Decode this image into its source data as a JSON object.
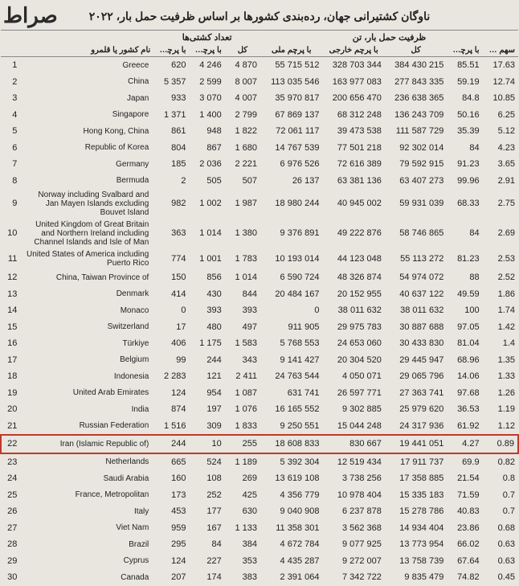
{
  "watermark": "صراط",
  "title": "ناوگان کشتیرانی جهان، رده‌بندی کشورها بر اساس ظرفیت حمل بار، ۲۰۲۲",
  "headers": {
    "group_ships": "تعداد کشتی‌ها",
    "group_capacity": "ظرفیت حمل بار، تن",
    "rank": "",
    "country": "نام کشور یا قلمرو",
    "nf": "با پرچم ملی",
    "ff": "با پرچم خارجی",
    "tot": "کل",
    "dnf": "با پرچم ملی",
    "dff": "با پرچم خارجی",
    "dtot": "کل",
    "pct": "با پرچم خارجی، درصد از کل",
    "wpct": "سهم کشور از کل جهان"
  },
  "highlight_rank": 22,
  "rows": [
    {
      "rank": 1,
      "country": "Greece",
      "nf": "620",
      "ff": "4 246",
      "tot": "4 870",
      "dnf": "55 715 512",
      "dff": "328 703 344",
      "dtot": "384 430 215",
      "pct": "85.51",
      "wpct": "17.63"
    },
    {
      "rank": 2,
      "country": "China",
      "nf": "5 357",
      "ff": "2 599",
      "tot": "8 007",
      "dnf": "113 035 546",
      "dff": "163 977 083",
      "dtot": "277 843 335",
      "pct": "59.19",
      "wpct": "12.74"
    },
    {
      "rank": 3,
      "country": "Japan",
      "nf": "933",
      "ff": "3 070",
      "tot": "4 007",
      "dnf": "35 970 817",
      "dff": "200 656 470",
      "dtot": "236 638 365",
      "pct": "84.8",
      "wpct": "10.85"
    },
    {
      "rank": 4,
      "country": "Singapore",
      "nf": "1 371",
      "ff": "1 400",
      "tot": "2 799",
      "dnf": "67 869 137",
      "dff": "68 312 248",
      "dtot": "136 243 709",
      "pct": "50.16",
      "wpct": "6.25"
    },
    {
      "rank": 5,
      "country": "Hong Kong, China",
      "nf": "861",
      "ff": "948",
      "tot": "1 822",
      "dnf": "72 061 117",
      "dff": "39 473 538",
      "dtot": "111 587 729",
      "pct": "35.39",
      "wpct": "5.12"
    },
    {
      "rank": 6,
      "country": "Republic of Korea",
      "nf": "804",
      "ff": "867",
      "tot": "1 680",
      "dnf": "14 767 539",
      "dff": "77 501 218",
      "dtot": "92 302 014",
      "pct": "84",
      "wpct": "4.23"
    },
    {
      "rank": 7,
      "country": "Germany",
      "nf": "185",
      "ff": "2 036",
      "tot": "2 221",
      "dnf": "6 976 526",
      "dff": "72 616 389",
      "dtot": "79 592 915",
      "pct": "91.23",
      "wpct": "3.65"
    },
    {
      "rank": 8,
      "country": "Bermuda",
      "nf": "2",
      "ff": "505",
      "tot": "507",
      "dnf": "26 137",
      "dff": "63 381 136",
      "dtot": "63 407 273",
      "pct": "99.96",
      "wpct": "2.91"
    },
    {
      "rank": 9,
      "country": "Norway including Svalbard and Jan Mayen Islands excluding Bouvet Island",
      "nf": "982",
      "ff": "1 002",
      "tot": "1 987",
      "dnf": "18 980 244",
      "dff": "40 945 002",
      "dtot": "59 931 039",
      "pct": "68.33",
      "wpct": "2.75",
      "multi": true
    },
    {
      "rank": 10,
      "country": "United Kingdom of Great Britain and Northern Ireland including Channel Islands and Isle of Man",
      "nf": "363",
      "ff": "1 014",
      "tot": "1 380",
      "dnf": "9 376 891",
      "dff": "49 222 876",
      "dtot": "58 746 865",
      "pct": "84",
      "wpct": "2.69",
      "multi": true
    },
    {
      "rank": 11,
      "country": "United States of America including Puerto Rico",
      "nf": "774",
      "ff": "1 001",
      "tot": "1 783",
      "dnf": "10 193 014",
      "dff": "44 123 048",
      "dtot": "55 113 272",
      "pct": "81.23",
      "wpct": "2.53",
      "multi": true
    },
    {
      "rank": 12,
      "country": "China, Taiwan Province of",
      "nf": "150",
      "ff": "856",
      "tot": "1 014",
      "dnf": "6 590 724",
      "dff": "48 326 874",
      "dtot": "54 974 072",
      "pct": "88",
      "wpct": "2.52"
    },
    {
      "rank": 13,
      "country": "Denmark",
      "nf": "414",
      "ff": "430",
      "tot": "844",
      "dnf": "20 484 167",
      "dff": "20 152 955",
      "dtot": "40 637 122",
      "pct": "49.59",
      "wpct": "1.86"
    },
    {
      "rank": 14,
      "country": "Monaco",
      "nf": "0",
      "ff": "393",
      "tot": "393",
      "dnf": "0",
      "dff": "38 011 632",
      "dtot": "38 011 632",
      "pct": "100",
      "wpct": "1.74"
    },
    {
      "rank": 15,
      "country": "Switzerland",
      "nf": "17",
      "ff": "480",
      "tot": "497",
      "dnf": "911 905",
      "dff": "29 975 783",
      "dtot": "30 887 688",
      "pct": "97.05",
      "wpct": "1.42"
    },
    {
      "rank": 16,
      "country": "Türkiye",
      "nf": "406",
      "ff": "1 175",
      "tot": "1 583",
      "dnf": "5 768 553",
      "dff": "24 653 060",
      "dtot": "30 433 830",
      "pct": "81.04",
      "wpct": "1.4"
    },
    {
      "rank": 17,
      "country": "Belgium",
      "nf": "99",
      "ff": "244",
      "tot": "343",
      "dnf": "9 141 427",
      "dff": "20 304 520",
      "dtot": "29 445 947",
      "pct": "68.96",
      "wpct": "1.35"
    },
    {
      "rank": 18,
      "country": "Indonesia",
      "nf": "2 283",
      "ff": "121",
      "tot": "2 411",
      "dnf": "24 763 544",
      "dff": "4 050 071",
      "dtot": "29 065 796",
      "pct": "14.06",
      "wpct": "1.33"
    },
    {
      "rank": 19,
      "country": "United Arab Emirates",
      "nf": "124",
      "ff": "954",
      "tot": "1 087",
      "dnf": "631 741",
      "dff": "26 597 771",
      "dtot": "27 363 741",
      "pct": "97.68",
      "wpct": "1.26"
    },
    {
      "rank": 20,
      "country": "India",
      "nf": "874",
      "ff": "197",
      "tot": "1 076",
      "dnf": "16 165 552",
      "dff": "9 302 885",
      "dtot": "25 979 620",
      "pct": "36.53",
      "wpct": "1.19"
    },
    {
      "rank": 21,
      "country": "Russian Federation",
      "nf": "1 516",
      "ff": "309",
      "tot": "1 833",
      "dnf": "9 250 551",
      "dff": "15 044 248",
      "dtot": "24 317 936",
      "pct": "61.92",
      "wpct": "1.12"
    },
    {
      "rank": 22,
      "country": "Iran (Islamic Republic of)",
      "nf": "244",
      "ff": "10",
      "tot": "255",
      "dnf": "18 608 833",
      "dff": "830 667",
      "dtot": "19 441 051",
      "pct": "4.27",
      "wpct": "0.89"
    },
    {
      "rank": 23,
      "country": "Netherlands",
      "nf": "665",
      "ff": "524",
      "tot": "1 189",
      "dnf": "5 392 304",
      "dff": "12 519 434",
      "dtot": "17 911 737",
      "pct": "69.9",
      "wpct": "0.82"
    },
    {
      "rank": 24,
      "country": "Saudi Arabia",
      "nf": "160",
      "ff": "108",
      "tot": "269",
      "dnf": "13 619 108",
      "dff": "3 738 256",
      "dtot": "17 358 885",
      "pct": "21.54",
      "wpct": "0.8"
    },
    {
      "rank": 25,
      "country": "France, Metropolitan",
      "nf": "173",
      "ff": "252",
      "tot": "425",
      "dnf": "4 356 779",
      "dff": "10 978 404",
      "dtot": "15 335 183",
      "pct": "71.59",
      "wpct": "0.7"
    },
    {
      "rank": 26,
      "country": "Italy",
      "nf": "453",
      "ff": "177",
      "tot": "630",
      "dnf": "9 040 908",
      "dff": "6 237 878",
      "dtot": "15 278 786",
      "pct": "40.83",
      "wpct": "0.7"
    },
    {
      "rank": 27,
      "country": "Viet Nam",
      "nf": "959",
      "ff": "167",
      "tot": "1 133",
      "dnf": "11 358 301",
      "dff": "3 562 368",
      "dtot": "14 934 404",
      "pct": "23.86",
      "wpct": "0.68"
    },
    {
      "rank": 28,
      "country": "Brazil",
      "nf": "295",
      "ff": "84",
      "tot": "384",
      "dnf": "4 672 784",
      "dff": "9 077 925",
      "dtot": "13 773 954",
      "pct": "66.02",
      "wpct": "0.63"
    },
    {
      "rank": 29,
      "country": "Cyprus",
      "nf": "124",
      "ff": "227",
      "tot": "353",
      "dnf": "4 435 287",
      "dff": "9 272 007",
      "dtot": "13 758 739",
      "pct": "67.64",
      "wpct": "0.63"
    },
    {
      "rank": 30,
      "country": "Canada",
      "nf": "207",
      "ff": "174",
      "tot": "383",
      "dnf": "2 391 064",
      "dff": "7 342 722",
      "dtot": "9 835 479",
      "pct": "74.82",
      "wpct": "0.45"
    }
  ]
}
